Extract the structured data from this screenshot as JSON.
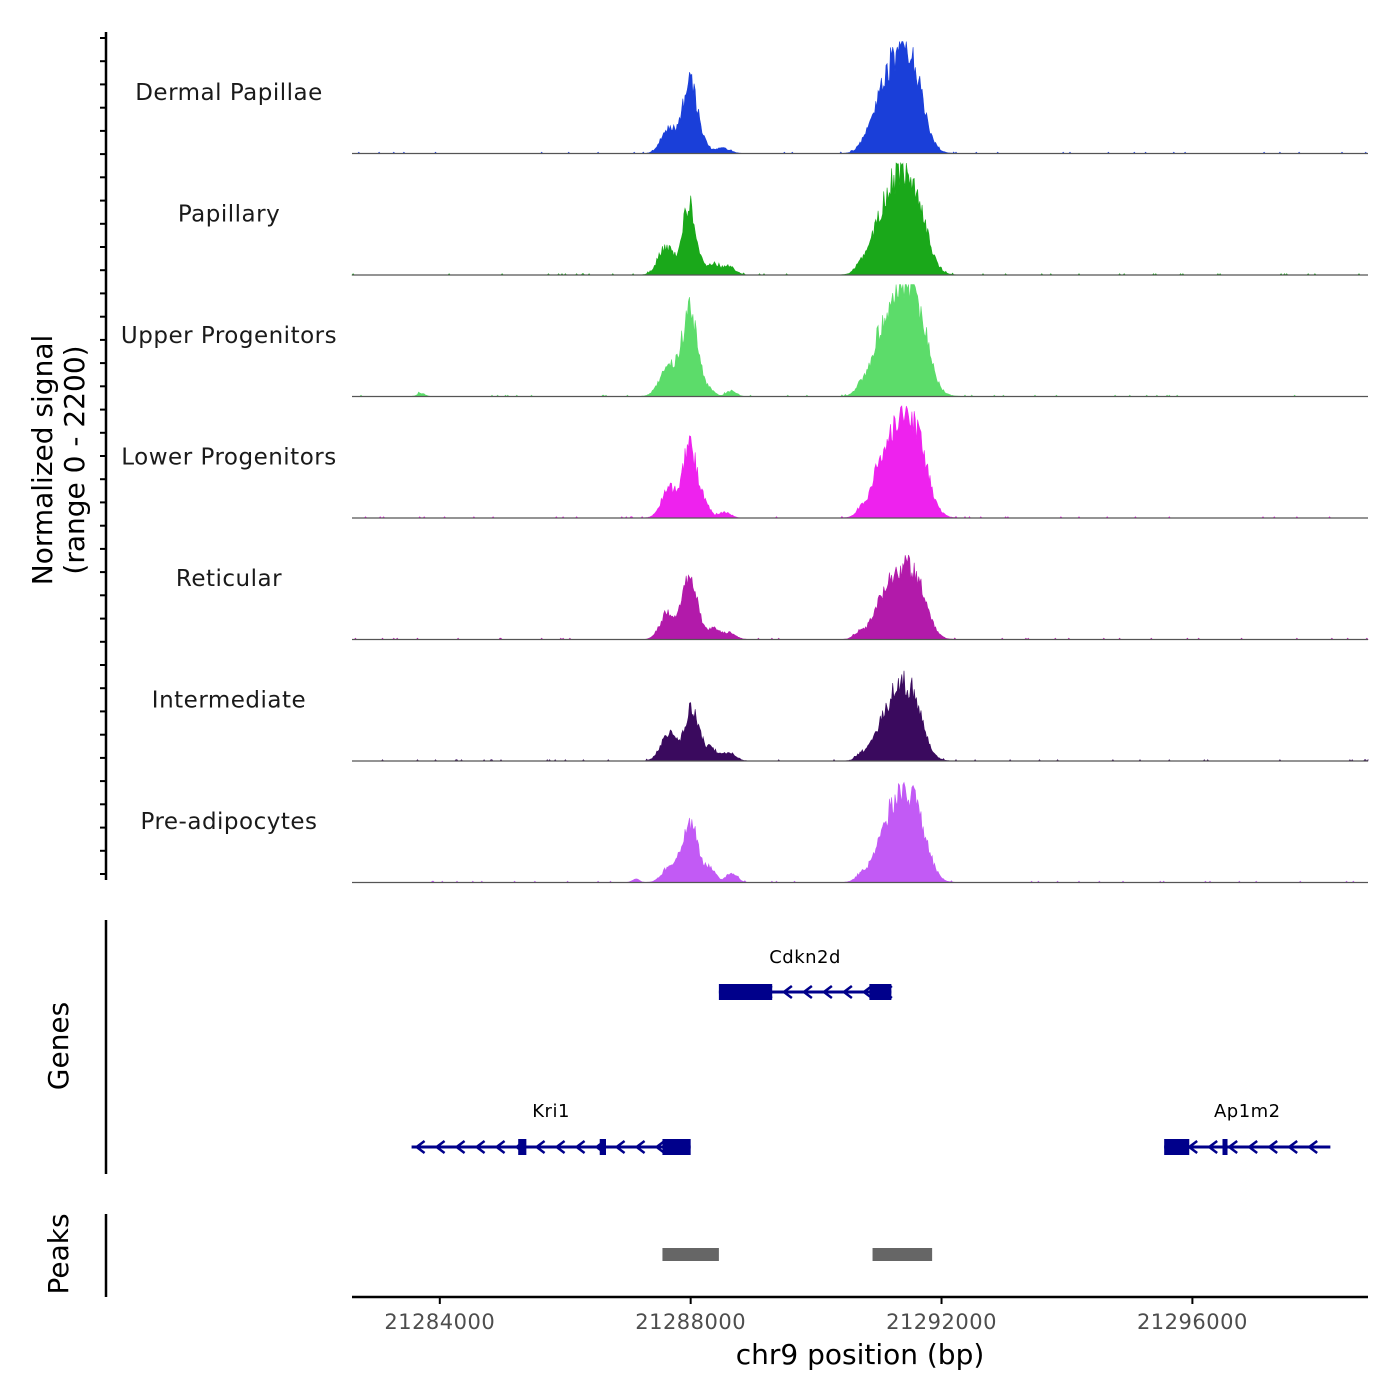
{
  "chart_data": {
    "type": "area",
    "title": "",
    "ylabel_line1": "Normalized signal",
    "ylabel_line2": "(range 0 - 2200)",
    "y_range": [
      0,
      2200
    ],
    "xlabel": "chr9 position (bp)",
    "xlim": [
      21282600,
      21298800
    ],
    "xticks": [
      21284000,
      21288000,
      21292000,
      21296000
    ],
    "xtick_labels": [
      "21284000",
      "21288000",
      "21292000",
      "21296000"
    ],
    "tracks": [
      {
        "name": "Dermal Papillae",
        "color": "#1a3fd9",
        "peaks": [
          {
            "c": 21287650,
            "w": 120,
            "h": 0.22
          },
          {
            "c": 21287980,
            "w": 110,
            "h": 0.6
          },
          {
            "c": 21288150,
            "w": 100,
            "h": 0.1
          },
          {
            "c": 21288500,
            "w": 120,
            "h": 0.05
          },
          {
            "c": 21290750,
            "w": 80,
            "h": 0.05
          },
          {
            "c": 21290950,
            "w": 90,
            "h": 0.12
          },
          {
            "c": 21291300,
            "w": 250,
            "h": 0.88
          },
          {
            "c": 21291600,
            "w": 150,
            "h": 0.3
          }
        ]
      },
      {
        "name": "Papillary",
        "color": "#1aa81a",
        "peaks": [
          {
            "c": 21287600,
            "w": 120,
            "h": 0.25
          },
          {
            "c": 21287980,
            "w": 110,
            "h": 0.62
          },
          {
            "c": 21288350,
            "w": 90,
            "h": 0.1
          },
          {
            "c": 21288600,
            "w": 110,
            "h": 0.07
          },
          {
            "c": 21290700,
            "w": 80,
            "h": 0.07
          },
          {
            "c": 21290950,
            "w": 90,
            "h": 0.1
          },
          {
            "c": 21291300,
            "w": 260,
            "h": 0.86
          },
          {
            "c": 21291650,
            "w": 160,
            "h": 0.3
          }
        ]
      },
      {
        "name": "Upper Progenitors",
        "color": "#5cdc6a",
        "peaks": [
          {
            "c": 21287650,
            "w": 140,
            "h": 0.27
          },
          {
            "c": 21287990,
            "w": 120,
            "h": 0.77
          },
          {
            "c": 21288300,
            "w": 80,
            "h": 0.06
          },
          {
            "c": 21288650,
            "w": 80,
            "h": 0.05
          },
          {
            "c": 21283700,
            "w": 60,
            "h": 0.03
          },
          {
            "c": 21290720,
            "w": 80,
            "h": 0.07
          },
          {
            "c": 21290960,
            "w": 80,
            "h": 0.12
          },
          {
            "c": 21291330,
            "w": 270,
            "h": 0.98
          },
          {
            "c": 21291650,
            "w": 160,
            "h": 0.33
          }
        ]
      },
      {
        "name": "Lower Progenitors",
        "color": "#ee22ee",
        "peaks": [
          {
            "c": 21287650,
            "w": 120,
            "h": 0.25
          },
          {
            "c": 21287990,
            "w": 120,
            "h": 0.62
          },
          {
            "c": 21288250,
            "w": 80,
            "h": 0.08
          },
          {
            "c": 21288550,
            "w": 90,
            "h": 0.05
          },
          {
            "c": 21290720,
            "w": 70,
            "h": 0.06
          },
          {
            "c": 21290960,
            "w": 80,
            "h": 0.12
          },
          {
            "c": 21291330,
            "w": 260,
            "h": 0.86
          },
          {
            "c": 21291650,
            "w": 160,
            "h": 0.3
          }
        ]
      },
      {
        "name": "Reticular",
        "color": "#b21aaa",
        "peaks": [
          {
            "c": 21287640,
            "w": 120,
            "h": 0.24
          },
          {
            "c": 21287990,
            "w": 120,
            "h": 0.55
          },
          {
            "c": 21288350,
            "w": 90,
            "h": 0.09
          },
          {
            "c": 21288600,
            "w": 110,
            "h": 0.06
          },
          {
            "c": 21290700,
            "w": 90,
            "h": 0.05
          },
          {
            "c": 21290960,
            "w": 90,
            "h": 0.08
          },
          {
            "c": 21291330,
            "w": 250,
            "h": 0.63
          },
          {
            "c": 21291650,
            "w": 150,
            "h": 0.23
          }
        ]
      },
      {
        "name": "Intermediate",
        "color": "#3a0a5e",
        "peaks": [
          {
            "c": 21287640,
            "w": 120,
            "h": 0.24
          },
          {
            "c": 21288020,
            "w": 120,
            "h": 0.47
          },
          {
            "c": 21288330,
            "w": 90,
            "h": 0.1
          },
          {
            "c": 21288600,
            "w": 110,
            "h": 0.08
          },
          {
            "c": 21290720,
            "w": 80,
            "h": 0.05
          },
          {
            "c": 21290950,
            "w": 80,
            "h": 0.08
          },
          {
            "c": 21291320,
            "w": 240,
            "h": 0.65
          },
          {
            "c": 21291600,
            "w": 140,
            "h": 0.22
          }
        ]
      },
      {
        "name": "Pre-adipocytes",
        "color": "#c25af5",
        "peaks": [
          {
            "c": 21287700,
            "w": 130,
            "h": 0.16
          },
          {
            "c": 21288010,
            "w": 120,
            "h": 0.5
          },
          {
            "c": 21288320,
            "w": 80,
            "h": 0.12
          },
          {
            "c": 21288650,
            "w": 90,
            "h": 0.08
          },
          {
            "c": 21287120,
            "w": 60,
            "h": 0.03
          },
          {
            "c": 21290720,
            "w": 90,
            "h": 0.05
          },
          {
            "c": 21290950,
            "w": 90,
            "h": 0.06
          },
          {
            "c": 21291330,
            "w": 250,
            "h": 0.79
          },
          {
            "c": 21291650,
            "w": 160,
            "h": 0.25
          }
        ]
      }
    ],
    "genes_label": "Genes",
    "genes": [
      {
        "name": "Cdkn2d",
        "start": 21288450,
        "end": 21291200,
        "strand": "-",
        "row": 0,
        "exons": [
          [
            21288450,
            21289300
          ],
          [
            21290850,
            21291200
          ]
        ]
      },
      {
        "name": "Kri1",
        "start": 21283550,
        "end": 21288000,
        "strand": "-",
        "row": 1,
        "exons": [
          [
            21285250,
            21285380
          ],
          [
            21286550,
            21286650
          ],
          [
            21287550,
            21288000
          ]
        ]
      },
      {
        "name": "Ap1m2",
        "start": 21295550,
        "end": 21298200,
        "strand": "-",
        "row": 1,
        "exons": [
          [
            21295550,
            21295950
          ],
          [
            21296480,
            21296560
          ]
        ]
      }
    ],
    "peaks_label": "Peaks",
    "peak_regions": [
      [
        21287550,
        21288450
      ],
      [
        21290900,
        21291850
      ]
    ]
  }
}
